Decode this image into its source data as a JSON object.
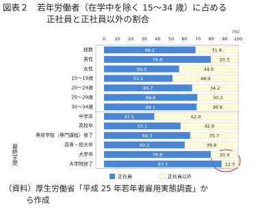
{
  "chart_data": {
    "type": "stacked-barh",
    "title": [
      "図表２　若年労働者（在学中を除く 15～34 歳）に占める",
      "正社員と正社員以外の割合"
    ],
    "unit": "(%)",
    "categories": [
      "総数",
      "男性",
      "女性",
      "15～19歳",
      "20～24歳",
      "25～29歳",
      "30～34歳",
      "中学卒",
      "高校卒",
      "専修学校（専門課程）修了",
      "高専・短大卒",
      "大学卒",
      "大学院修了"
    ],
    "group_label": "最終学歴",
    "series": [
      {
        "name": "正社員",
        "color": "#4a86d8",
        "values": [
          68.2,
          79.6,
          56.0,
          51.1,
          65.7,
          69.6,
          69.1,
          37.5,
          57.1,
          64.3,
          60.2,
          79.6,
          87.7
        ],
        "value_labels": [
          "68.2",
          "79.6",
          "56.0",
          "51.1",
          "65.7",
          "69.6",
          "69.1",
          "37.5",
          "57.1",
          "64.3",
          "60.2",
          "79.6",
          "87.7"
        ]
      },
      {
        "name": "正社員以外",
        "color": "#fdfbd8",
        "values": [
          31.8,
          20.3,
          44.0,
          48.9,
          34.2,
          30.3,
          30.9,
          62.0,
          42.8,
          35.7,
          39.8,
          20.4,
          12.3
        ],
        "value_labels": [
          "31.8",
          "20.3",
          "44.0",
          "48.9",
          "34.2",
          "30.3",
          "30.9",
          "62.0",
          "42.8",
          "35.7",
          "39.8",
          "20.4",
          "12.3"
        ]
      }
    ],
    "xlim": [
      0,
      100
    ],
    "xticks": [
      0,
      10,
      20,
      30,
      40,
      50,
      60,
      70,
      80,
      90,
      100
    ],
    "grid": true,
    "source": [
      "（資料）厚生労働省「平成 25 年若年者雇用実態調査」か",
      "ら作成"
    ]
  }
}
